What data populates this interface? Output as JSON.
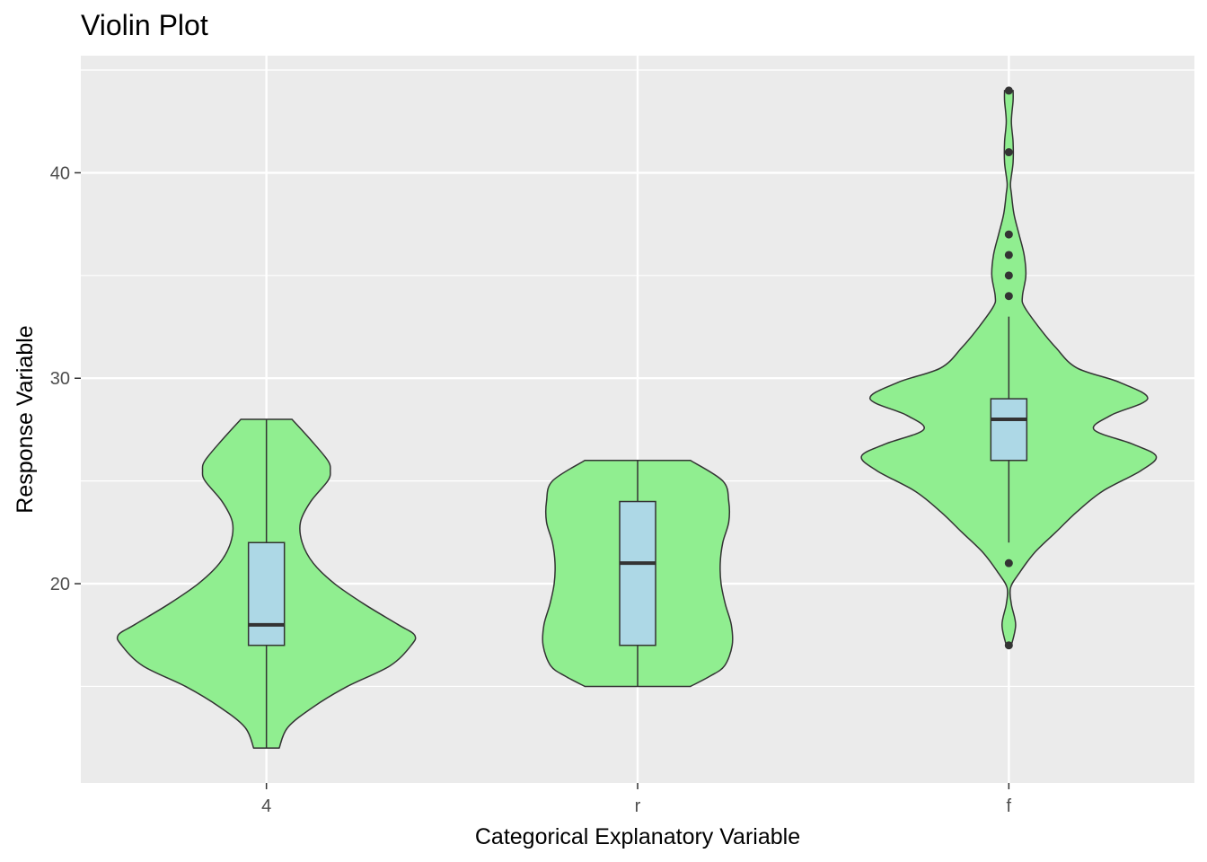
{
  "chart_data": {
    "type": "violin",
    "title": "Violin Plot",
    "xlabel": "Categorical Explanatory Variable",
    "ylabel": "Response Variable",
    "ylim": [
      10.3,
      45.7
    ],
    "yticks": [
      20,
      30,
      40
    ],
    "grid": true,
    "colors": {
      "panel": "#EBEBEB",
      "grid": "#FFFFFF",
      "violin_fill": "#90EE90",
      "box_fill": "#ADD8E6",
      "outline": "#333333"
    },
    "categories": [
      "4",
      "r",
      "f"
    ],
    "groups": [
      {
        "category": "4",
        "min": 12,
        "q1": 17,
        "median": 18,
        "q3": 22,
        "max": 28,
        "outliers": [],
        "density": [
          [
            12,
            0.15
          ],
          [
            13,
            0.25
          ],
          [
            14,
            0.55
          ],
          [
            15,
            0.95
          ],
          [
            16,
            1.45
          ],
          [
            17,
            1.7
          ],
          [
            17.5,
            1.74
          ],
          [
            18,
            1.55
          ],
          [
            19,
            1.15
          ],
          [
            20,
            0.8
          ],
          [
            21,
            0.55
          ],
          [
            22,
            0.42
          ],
          [
            23,
            0.4
          ],
          [
            24,
            0.52
          ],
          [
            25,
            0.72
          ],
          [
            25.5,
            0.75
          ],
          [
            26,
            0.72
          ],
          [
            27,
            0.52
          ],
          [
            28,
            0.3
          ]
        ]
      },
      {
        "category": "r",
        "min": 15,
        "q1": 17,
        "median": 21,
        "q3": 24,
        "max": 26,
        "outliers": [],
        "density": [
          [
            15,
            0.62
          ],
          [
            15.5,
            0.85
          ],
          [
            16,
            1.02
          ],
          [
            17,
            1.11
          ],
          [
            18,
            1.1
          ],
          [
            19,
            1.03
          ],
          [
            20,
            0.98
          ],
          [
            21,
            0.97
          ],
          [
            22,
            1.0
          ],
          [
            23,
            1.07
          ],
          [
            24,
            1.07
          ],
          [
            25,
            1.0
          ],
          [
            26,
            0.62
          ]
        ]
      },
      {
        "category": "f",
        "min": 22,
        "q1": 26,
        "median": 28,
        "q3": 29,
        "max": 33,
        "outliers": [
          17,
          21,
          34,
          35,
          36,
          37,
          41,
          44
        ],
        "density": [
          [
            17,
            0.03
          ],
          [
            18,
            0.08
          ],
          [
            19,
            0.03
          ],
          [
            19.8,
            0.02
          ],
          [
            20.5,
            0.12
          ],
          [
            21.5,
            0.3
          ],
          [
            22.5,
            0.55
          ],
          [
            23.5,
            0.8
          ],
          [
            24.5,
            1.1
          ],
          [
            25.5,
            1.55
          ],
          [
            26.2,
            1.73
          ],
          [
            26.8,
            1.45
          ],
          [
            27.5,
            1.0
          ],
          [
            28.2,
            1.2
          ],
          [
            29,
            1.63
          ],
          [
            29.8,
            1.3
          ],
          [
            30.5,
            0.8
          ],
          [
            31.5,
            0.55
          ],
          [
            32.5,
            0.35
          ],
          [
            33.5,
            0.18
          ],
          [
            34,
            0.16
          ],
          [
            35,
            0.2
          ],
          [
            36,
            0.18
          ],
          [
            37,
            0.12
          ],
          [
            38,
            0.06
          ],
          [
            39,
            0.03
          ],
          [
            39.5,
            0.02
          ],
          [
            40.5,
            0.05
          ],
          [
            41.5,
            0.05
          ],
          [
            42.5,
            0.03
          ],
          [
            43.5,
            0.05
          ],
          [
            44,
            0.05
          ]
        ]
      }
    ]
  }
}
